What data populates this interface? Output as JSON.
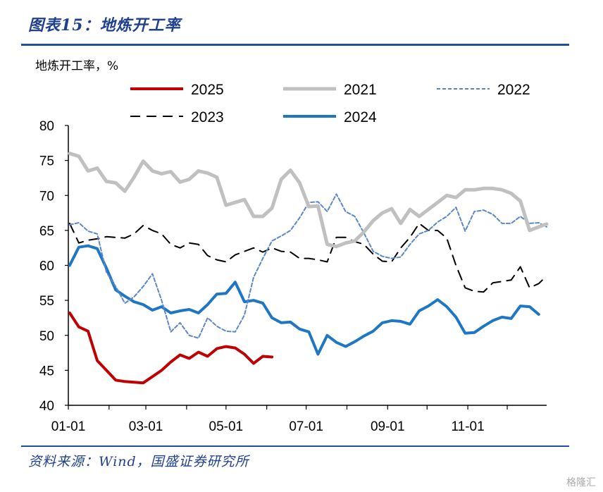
{
  "figure": {
    "title": "图表15：地炼开工率",
    "source": "资料来源：Wind，国盛证券研究所",
    "watermark": "格隆汇"
  },
  "colors": {
    "title_blue": "#1f3f8f",
    "rule_blue": "#1f4f9f"
  },
  "chart_data": {
    "type": "line",
    "ylabel": "地炼开工率，%",
    "xlabel": "",
    "ylim": [
      40,
      80
    ],
    "yticks": [
      40,
      45,
      50,
      55,
      60,
      65,
      70,
      75,
      80
    ],
    "xlim": [
      "01-01",
      "12-31"
    ],
    "xtick_labels": [
      "01-01",
      "03-01",
      "05-01",
      "07-01",
      "09-01",
      "11-01"
    ],
    "xtick_days": [
      0,
      59,
      120,
      181,
      243,
      304
    ],
    "grid": false,
    "legend_position": "top",
    "series": [
      {
        "name": "2025",
        "color": "#c00000",
        "style": "solid",
        "width": 4,
        "x": [
          "01-02",
          "01-09",
          "01-16",
          "01-23",
          "01-30",
          "02-06",
          "02-13",
          "02-20",
          "02-27",
          "03-06",
          "03-13",
          "03-20",
          "03-27",
          "04-03",
          "04-10",
          "04-17",
          "04-24",
          "05-01",
          "05-08",
          "05-15",
          "05-22",
          "05-29",
          "06-05",
          "06-12"
        ],
        "values": [
          53.2,
          51.2,
          50.6,
          46.4,
          45.0,
          43.6,
          43.4,
          43.3,
          43.2,
          44.1,
          45.0,
          46.2,
          47.2,
          46.7,
          47.6,
          47.0,
          48.1,
          48.4,
          48.2,
          47.3,
          46.0,
          47.0,
          46.9,
          null
        ]
      },
      {
        "name": "2021",
        "color": "#c0c0c0",
        "style": "solid",
        "width": 5,
        "x": [
          "01-02",
          "01-09",
          "01-16",
          "01-23",
          "01-30",
          "02-06",
          "02-13",
          "02-20",
          "02-27",
          "03-06",
          "03-13",
          "03-20",
          "03-27",
          "04-03",
          "04-10",
          "04-17",
          "04-24",
          "05-01",
          "05-08",
          "05-15",
          "05-22",
          "05-29",
          "06-05",
          "06-12",
          "06-19",
          "06-26",
          "07-03",
          "07-10",
          "07-17",
          "07-24",
          "07-31",
          "08-07",
          "08-14",
          "08-21",
          "08-28",
          "09-04",
          "09-11",
          "09-18",
          "09-25",
          "10-02",
          "10-09",
          "10-16",
          "10-23",
          "10-30",
          "11-06",
          "11-13",
          "11-20",
          "11-27",
          "12-04",
          "12-11",
          "12-18",
          "12-25",
          "12-31"
        ],
        "values": [
          76.0,
          75.6,
          73.5,
          73.9,
          72.0,
          71.8,
          70.6,
          72.6,
          74.9,
          73.5,
          73.1,
          73.4,
          71.9,
          72.3,
          73.5,
          73.2,
          72.6,
          68.6,
          69.0,
          69.4,
          67.0,
          67.0,
          68.2,
          72.3,
          73.6,
          71.8,
          68.4,
          68.5,
          63.0,
          62.7,
          63.2,
          63.5,
          64.8,
          66.4,
          67.5,
          68.1,
          66.0,
          68.0,
          67.0,
          68.0,
          69.0,
          70.0,
          69.7,
          70.8,
          70.8,
          71.0,
          71.0,
          70.8,
          70.3,
          69.2,
          65.0,
          65.5,
          65.9
        ]
      },
      {
        "name": "2022",
        "color": "#5b87c7",
        "style": "dotted",
        "width": 2,
        "x": [
          "01-02",
          "01-09",
          "01-16",
          "01-23",
          "01-30",
          "02-06",
          "02-13",
          "02-20",
          "02-27",
          "03-06",
          "03-13",
          "03-20",
          "03-27",
          "04-03",
          "04-10",
          "04-17",
          "04-24",
          "05-01",
          "05-08",
          "05-15",
          "05-22",
          "05-29",
          "06-05",
          "06-12",
          "06-19",
          "06-26",
          "07-03",
          "07-10",
          "07-17",
          "07-24",
          "07-31",
          "08-07",
          "08-14",
          "08-21",
          "08-28",
          "09-04",
          "09-11",
          "09-18",
          "09-25",
          "10-02",
          "10-09",
          "10-16",
          "10-23",
          "10-30",
          "11-06",
          "11-13",
          "11-20",
          "11-27",
          "12-04",
          "12-11",
          "12-18",
          "12-25",
          "12-31"
        ],
        "values": [
          65.8,
          66.1,
          64.9,
          64.5,
          59.0,
          57.0,
          54.6,
          55.5,
          57.0,
          58.8,
          55.0,
          50.5,
          51.8,
          50.0,
          49.6,
          52.5,
          51.3,
          50.6,
          50.5,
          52.9,
          58.3,
          61.0,
          63.5,
          64.2,
          65.0,
          66.8,
          69.0,
          69.1,
          67.7,
          70.2,
          67.7,
          67.0,
          64.6,
          62.0,
          61.3,
          61.0,
          61.2,
          63.0,
          64.5,
          65.0,
          66.2,
          67.0,
          68.3,
          64.9,
          67.7,
          67.9,
          67.3,
          66.0,
          66.0,
          67.0,
          66.0,
          66.1,
          65.5
        ]
      },
      {
        "name": "2023",
        "color": "#000000",
        "style": "dashed",
        "width": 2,
        "x": [
          "01-02",
          "01-09",
          "01-16",
          "01-23",
          "01-30",
          "02-06",
          "02-13",
          "02-20",
          "02-27",
          "03-06",
          "03-13",
          "03-20",
          "03-27",
          "04-03",
          "04-10",
          "04-17",
          "04-24",
          "05-01",
          "05-08",
          "05-15",
          "05-22",
          "05-29",
          "06-05",
          "06-12",
          "06-19",
          "06-26",
          "07-03",
          "07-10",
          "07-17",
          "07-24",
          "07-31",
          "08-07",
          "08-14",
          "08-21",
          "08-28",
          "09-04",
          "09-11",
          "09-18",
          "09-25",
          "10-02",
          "10-09",
          "10-16",
          "10-23",
          "10-30",
          "11-06",
          "11-13",
          "11-20",
          "11-27",
          "12-04",
          "12-11",
          "12-18",
          "12-25",
          "12-31"
        ],
        "values": [
          66.0,
          63.2,
          63.6,
          63.8,
          64.1,
          64.0,
          63.9,
          64.5,
          65.7,
          65.0,
          64.5,
          63.0,
          62.5,
          63.2,
          63.0,
          61.4,
          60.8,
          60.5,
          61.5,
          62.0,
          62.5,
          61.9,
          62.5,
          62.0,
          61.9,
          61.0,
          61.0,
          60.8,
          60.5,
          64.0,
          64.0,
          63.4,
          63.0,
          61.6,
          60.6,
          60.5,
          62.5,
          64.0,
          66.0,
          65.0,
          65.0,
          63.9,
          60.0,
          56.8,
          56.3,
          56.2,
          57.5,
          57.7,
          57.9,
          59.8,
          56.8,
          57.4,
          58.5
        ]
      },
      {
        "name": "2024",
        "color": "#1f77c4",
        "style": "solid",
        "width": 4,
        "x": [
          "01-02",
          "01-09",
          "01-16",
          "01-23",
          "01-30",
          "02-06",
          "02-13",
          "02-20",
          "02-27",
          "03-06",
          "03-13",
          "03-20",
          "03-27",
          "04-03",
          "04-10",
          "04-17",
          "04-24",
          "05-01",
          "05-08",
          "05-15",
          "05-22",
          "05-29",
          "06-05",
          "06-12",
          "06-19",
          "06-26",
          "07-03",
          "07-10",
          "07-17",
          "07-24",
          "07-31",
          "08-07",
          "08-14",
          "08-21",
          "08-28",
          "09-04",
          "09-11",
          "09-18",
          "09-25",
          "10-02",
          "10-09",
          "10-16",
          "10-23",
          "10-30",
          "11-06",
          "11-13",
          "11-20",
          "11-27",
          "12-04",
          "12-11",
          "12-18",
          "12-25",
          "12-31"
        ],
        "values": [
          60.0,
          62.6,
          62.8,
          62.4,
          59.6,
          56.5,
          55.6,
          54.8,
          54.4,
          53.6,
          54.1,
          53.2,
          53.5,
          53.7,
          53.2,
          54.4,
          55.9,
          56.0,
          57.6,
          54.8,
          55.0,
          54.6,
          52.5,
          51.8,
          51.9,
          50.9,
          50.5,
          47.3,
          50.0,
          49.0,
          48.4,
          49.1,
          49.9,
          50.6,
          51.8,
          52.1,
          52.0,
          51.6,
          53.5,
          54.2,
          55.1,
          54.1,
          52.6,
          50.3,
          50.4,
          51.3,
          52.1,
          52.6,
          52.4,
          54.2,
          54.1,
          53.0,
          null
        ]
      }
    ]
  }
}
